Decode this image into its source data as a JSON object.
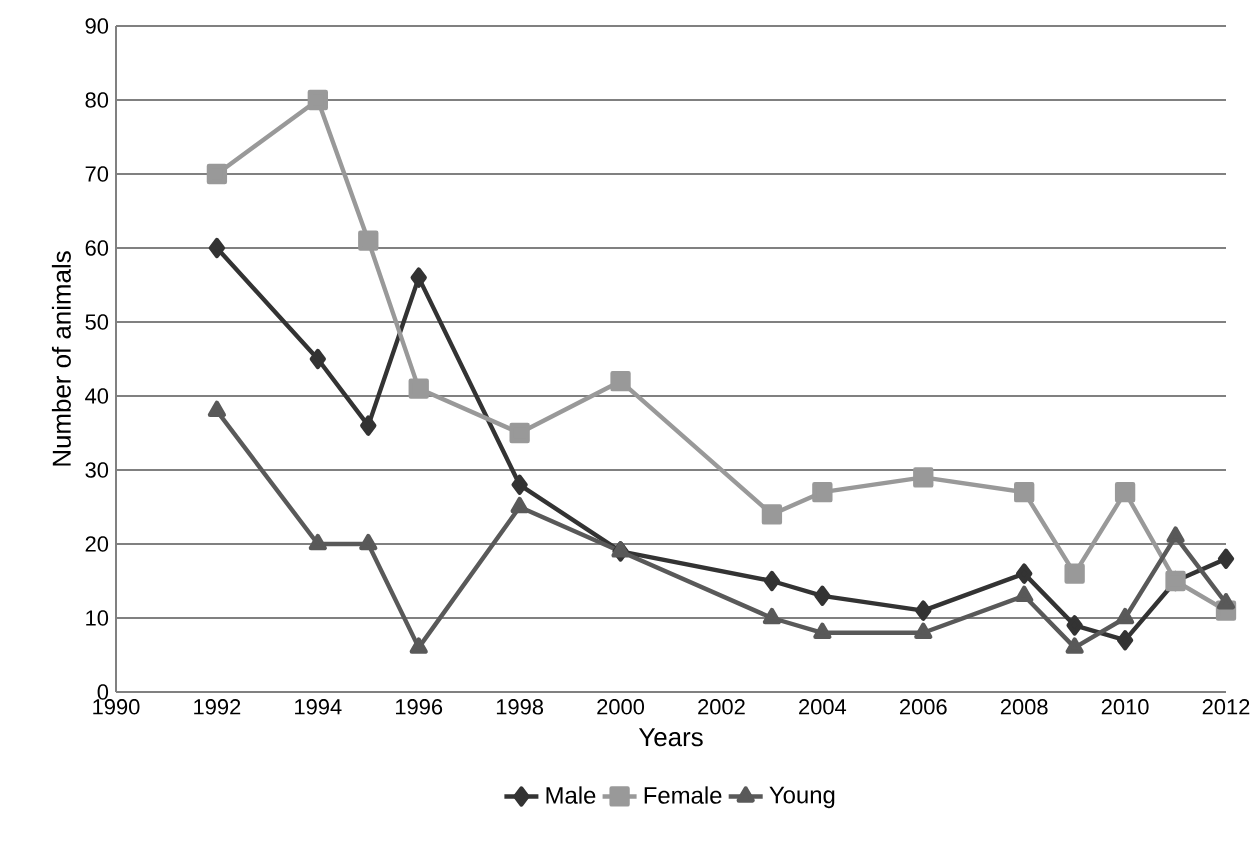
{
  "chart_data": {
    "type": "line",
    "xlabel": "Years",
    "ylabel": "Number of animals",
    "x": [
      1992,
      1994,
      1995,
      1996,
      1998,
      2000,
      2003,
      2004,
      2006,
      2008,
      2009,
      2010,
      2011,
      2012
    ],
    "series": [
      {
        "name": "Male",
        "color": "#333333",
        "marker": "diamond",
        "values": [
          60,
          45,
          36,
          56,
          28,
          19,
          15,
          13,
          11,
          16,
          9,
          7,
          15,
          18
        ]
      },
      {
        "name": "Female",
        "color": "#999999",
        "marker": "square",
        "values": [
          70,
          80,
          61,
          41,
          35,
          42,
          24,
          27,
          29,
          27,
          16,
          27,
          15,
          11
        ]
      },
      {
        "name": "Young",
        "color": "#595959",
        "marker": "triangle",
        "values": [
          38,
          20,
          20,
          6,
          25,
          19,
          10,
          8,
          8,
          13,
          6,
          10,
          21,
          12
        ]
      }
    ],
    "xlim": [
      1990,
      2012
    ],
    "xticks": [
      1990,
      1992,
      1994,
      1996,
      1998,
      2000,
      2002,
      2004,
      2006,
      2008,
      2010,
      2012
    ],
    "ylim": [
      0,
      90
    ],
    "yticks": [
      0,
      10,
      20,
      30,
      40,
      50,
      60,
      70,
      80,
      90
    ],
    "grid": "y",
    "legend": "bottom",
    "line_style": "solid"
  }
}
